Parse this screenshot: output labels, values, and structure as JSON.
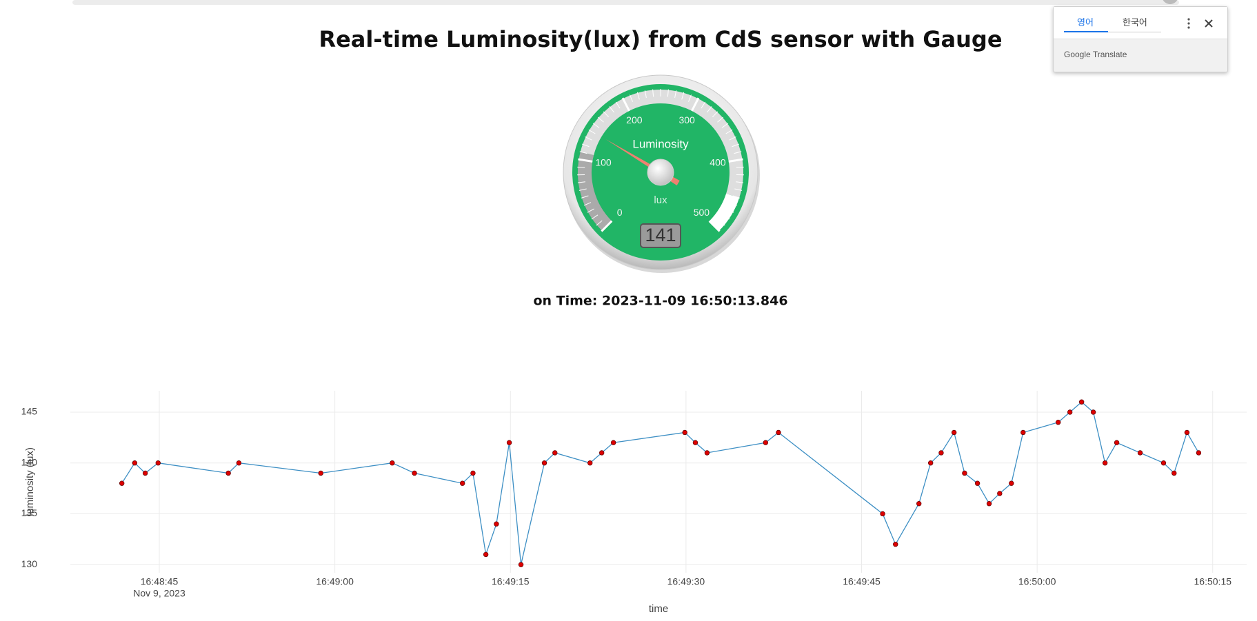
{
  "title": "Real-time Luminosity(lux) from CdS sensor with Gauge",
  "time_label": "on Time: 2023-11-09 16:50:13.846",
  "translate_popup": {
    "tabs": [
      "영어",
      "한국어"
    ],
    "brand": "Google Translate"
  },
  "chart_data": [
    {
      "type": "gauge",
      "title": "Luminosity",
      "units": "lux",
      "value": 141,
      "ylim": [
        0,
        500
      ],
      "yticks": [
        0,
        100,
        200,
        300,
        400,
        500
      ],
      "minor_ticks": 10,
      "color": "#21b566",
      "needle_color": "#f08070",
      "highlights": [
        {
          "from": 0,
          "to": 110,
          "color": "#aaaaaa"
        },
        {
          "from": 110,
          "to": 450,
          "color": "#dedede"
        },
        {
          "from": 450,
          "to": 500,
          "color": "#ffffff"
        }
      ]
    },
    {
      "type": "line",
      "x_label": "time",
      "y_label": "luminosity (lux)",
      "x_date_label": "Nov 9, 2023",
      "x": [
        "2023-11-09 16:48:41.8",
        "2023-11-09 16:48:42.9",
        "2023-11-09 16:48:43.8",
        "2023-11-09 16:48:44.9",
        "2023-11-09 16:48:50.9",
        "2023-11-09 16:48:51.8",
        "2023-11-09 16:48:58.8",
        "2023-11-09 16:49:04.9",
        "2023-11-09 16:49:06.8",
        "2023-11-09 16:49:10.9",
        "2023-11-09 16:49:11.8",
        "2023-11-09 16:49:12.9",
        "2023-11-09 16:49:13.8",
        "2023-11-09 16:49:14.9",
        "2023-11-09 16:49:15.9",
        "2023-11-09 16:49:17.9",
        "2023-11-09 16:49:18.8",
        "2023-11-09 16:49:21.8",
        "2023-11-09 16:49:22.8",
        "2023-11-09 16:49:23.8",
        "2023-11-09 16:49:29.9",
        "2023-11-09 16:49:30.8",
        "2023-11-09 16:49:31.8",
        "2023-11-09 16:49:36.8",
        "2023-11-09 16:49:37.9",
        "2023-11-09 16:49:46.8",
        "2023-11-09 16:49:47.9",
        "2023-11-09 16:49:49.9",
        "2023-11-09 16:49:50.9",
        "2023-11-09 16:49:51.8",
        "2023-11-09 16:49:52.9",
        "2023-11-09 16:49:53.8",
        "2023-11-09 16:49:54.9",
        "2023-11-09 16:49:55.9",
        "2023-11-09 16:49:56.8",
        "2023-11-09 16:49:57.8",
        "2023-11-09 16:49:58.8",
        "2023-11-09 16:50:01.8",
        "2023-11-09 16:50:02.8",
        "2023-11-09 16:50:03.8",
        "2023-11-09 16:50:04.8",
        "2023-11-09 16:50:05.8",
        "2023-11-09 16:50:06.8",
        "2023-11-09 16:50:08.8",
        "2023-11-09 16:50:10.8",
        "2023-11-09 16:50:11.7",
        "2023-11-09 16:50:12.8",
        "2023-11-09 16:50:13.8"
      ],
      "series": [
        {
          "name": "luminosity",
          "color": "#3d8fc4",
          "marker_color": "#dd0000",
          "values": [
            138,
            140,
            139,
            140,
            139,
            140,
            139,
            140,
            139,
            138,
            139,
            131,
            134,
            142,
            130,
            140,
            141,
            140,
            141,
            142,
            143,
            142,
            141,
            142,
            143,
            135,
            132,
            136,
            140,
            141,
            143,
            139,
            138,
            136,
            137,
            138,
            143,
            144,
            145,
            146,
            145,
            140,
            142,
            141,
            140,
            139,
            143,
            141
          ]
        }
      ],
      "xlim": [
        "2023-11-09 16:48:37.4",
        "2023-11-09 16:50:17.9"
      ],
      "xticks": [
        {
          "value": "2023-11-09 16:48:45",
          "label": "16:48:45"
        },
        {
          "value": "2023-11-09 16:49:00",
          "label": "16:49:00"
        },
        {
          "value": "2023-11-09 16:49:15",
          "label": "16:49:15"
        },
        {
          "value": "2023-11-09 16:49:30",
          "label": "16:49:30"
        },
        {
          "value": "2023-11-09 16:49:45",
          "label": "16:49:45"
        },
        {
          "value": "2023-11-09 16:50:00",
          "label": "16:50:00"
        },
        {
          "value": "2023-11-09 16:50:15",
          "label": "16:50:15"
        }
      ],
      "ylim": [
        129.2,
        147.1
      ],
      "yticks": [
        130,
        135,
        140,
        145
      ],
      "grid": true
    }
  ]
}
